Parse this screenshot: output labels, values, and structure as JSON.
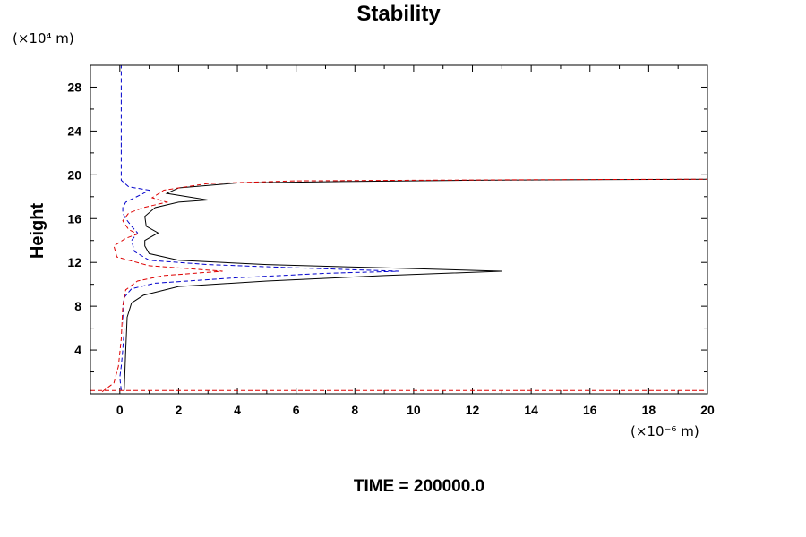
{
  "chart_data": {
    "type": "line",
    "title": "Stability",
    "ylabel": "Height",
    "xlabel": "",
    "y_unit_label": "(×10⁴ m)",
    "x_unit_label": "(×10⁻⁶ m)",
    "footer": "TIME = 200000.0",
    "xlim": [
      -1,
      20
    ],
    "ylim": [
      0,
      30
    ],
    "x_ticks": [
      "0",
      "2",
      "4",
      "6",
      "8",
      "10",
      "12",
      "14",
      "16",
      "18",
      "20"
    ],
    "y_ticks": [
      "4",
      "8",
      "12",
      "16",
      "20",
      "24",
      "28"
    ],
    "x_tick_values": [
      0,
      2,
      4,
      6,
      8,
      10,
      12,
      14,
      16,
      18,
      20
    ],
    "y_tick_values": [
      4,
      8,
      12,
      16,
      20,
      24,
      28
    ],
    "grid": false,
    "colors": {
      "black": "#000000",
      "blue": "#0000cc",
      "red": "#dd0000"
    },
    "series": [
      {
        "color": "#000000",
        "style": "solid",
        "x": [
          0.15,
          0.2,
          0.25,
          0.4,
          0.8,
          2.0,
          5.0,
          9.0,
          13.0,
          9.0,
          5.0,
          2.0,
          1.0,
          0.85,
          0.85,
          1.3,
          0.9,
          0.85,
          1.2,
          2.0,
          3.0,
          1.6,
          2.0,
          4.0,
          8.0,
          12.0,
          16.0,
          20.0
        ],
        "y": [
          0.3,
          4.0,
          7.0,
          8.3,
          9.0,
          9.8,
          10.3,
          10.8,
          11.2,
          11.5,
          11.8,
          12.2,
          12.8,
          13.5,
          14.0,
          14.7,
          15.3,
          16.2,
          17.0,
          17.5,
          17.7,
          18.3,
          18.8,
          19.25,
          19.4,
          19.5,
          19.55,
          19.6
        ]
      },
      {
        "color": "#0000cc",
        "style": "dashed",
        "x": [
          0.05,
          0.0,
          0.05,
          0.1,
          0.15,
          0.1,
          0.15,
          0.4,
          1.2,
          4.0,
          7.0,
          9.5,
          6.0,
          3.0,
          1.0,
          0.5,
          0.4,
          0.6,
          0.4,
          0.2,
          0.1,
          0.1,
          0.2,
          0.5,
          0.8,
          1.0,
          0.3,
          0.05,
          0.05
        ],
        "y": [
          0.3,
          1.5,
          2.5,
          4.0,
          6.0,
          8.0,
          8.8,
          9.6,
          10.1,
          10.6,
          11.0,
          11.2,
          11.5,
          11.8,
          12.2,
          13.0,
          14.0,
          14.7,
          15.3,
          16.0,
          16.5,
          17.0,
          17.5,
          17.9,
          18.3,
          18.6,
          18.9,
          19.5,
          30.0
        ]
      },
      {
        "color": "#dd0000",
        "style": "dashed",
        "x": [
          -0.6,
          -0.2,
          -0.05,
          0.05,
          0.1,
          0.2,
          0.6,
          1.5,
          3.5,
          1.0,
          -0.1,
          -0.2,
          0.2,
          0.6,
          0.3,
          0.1,
          0.3,
          0.8,
          1.6,
          1.1,
          1.5,
          3.0,
          6.0,
          10.0,
          14.0,
          20.0
        ],
        "y": [
          0.2,
          1.0,
          2.5,
          5.0,
          8.0,
          9.5,
          10.3,
          10.8,
          11.2,
          11.7,
          12.5,
          13.5,
          14.2,
          14.6,
          15.0,
          15.8,
          16.5,
          17.0,
          17.5,
          17.9,
          18.6,
          19.2,
          19.45,
          19.5,
          19.55,
          19.6
        ]
      },
      {
        "color": "#dd0000",
        "style": "dashed",
        "x": [
          -1.0,
          20.0
        ],
        "y": [
          0.3,
          0.3
        ]
      }
    ]
  }
}
